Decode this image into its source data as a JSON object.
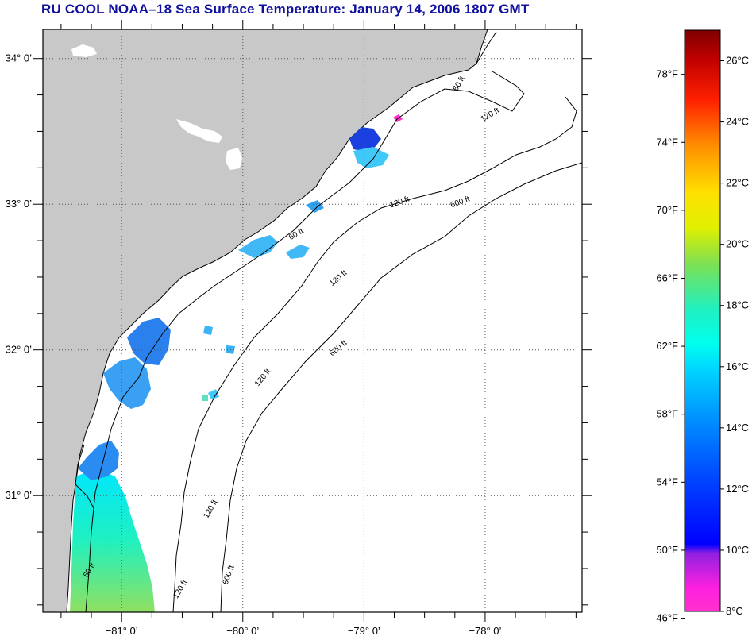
{
  "title": "RU COOL  NOAA–18  Sea Surface Temperature:  January 14, 2006 1807 GMT",
  "map": {
    "lon_range": [
      -81.65,
      -77.2
    ],
    "lat_range": [
      30.2,
      34.2
    ],
    "lat_ticks": [
      {
        "value": 34,
        "label": "34° 0’"
      },
      {
        "value": 33,
        "label": "33° 0’"
      },
      {
        "value": 32,
        "label": "32° 0’"
      },
      {
        "value": 31,
        "label": "31° 0’"
      }
    ],
    "lon_ticks": [
      {
        "value": -81,
        "label": "−81° 0’"
      },
      {
        "value": -80,
        "label": "−80° 0’"
      },
      {
        "value": -79,
        "label": "−79° 0’"
      },
      {
        "value": -78,
        "label": "−78° 0’"
      }
    ],
    "depth_labels": [
      {
        "text": "60 ft",
        "lon": -78.2,
        "lat": 33.82,
        "rotate": -60
      },
      {
        "text": "60 ft",
        "lon": -79.55,
        "lat": 32.78,
        "rotate": -30
      },
      {
        "text": "60 ft",
        "lon": -81.25,
        "lat": 30.48,
        "rotate": -60
      },
      {
        "text": "120 ft",
        "lon": -78.7,
        "lat": 33.0,
        "rotate": -20
      },
      {
        "text": "120 ft",
        "lon": -79.2,
        "lat": 32.48,
        "rotate": -40
      },
      {
        "text": "120 ft",
        "lon": -79.82,
        "lat": 31.8,
        "rotate": -50
      },
      {
        "text": "120 ft",
        "lon": -80.25,
        "lat": 30.9,
        "rotate": -60
      },
      {
        "text": "120 ft",
        "lon": -80.5,
        "lat": 30.35,
        "rotate": -60
      },
      {
        "text": "120 ft",
        "lon": -77.95,
        "lat": 33.6,
        "rotate": -30
      },
      {
        "text": "600 ft",
        "lon": -78.2,
        "lat": 33.0,
        "rotate": -20
      },
      {
        "text": "600 ft",
        "lon": -79.2,
        "lat": 32.0,
        "rotate": -40
      },
      {
        "text": "600 ft",
        "lon": -80.1,
        "lat": 30.45,
        "rotate": -70
      }
    ]
  },
  "colorbar": {
    "fahrenheit": [
      {
        "value": 78,
        "label": "78°F"
      },
      {
        "value": 74,
        "label": "74°F"
      },
      {
        "value": 70,
        "label": "70°F"
      },
      {
        "value": 66,
        "label": "66°F"
      },
      {
        "value": 62,
        "label": "62°F"
      },
      {
        "value": 58,
        "label": "58°F"
      },
      {
        "value": 54,
        "label": "54°F"
      },
      {
        "value": 50,
        "label": "50°F"
      },
      {
        "value": 46,
        "label": "46°F"
      }
    ],
    "celsius": [
      {
        "value": 26,
        "label": "26°C"
      },
      {
        "value": 24,
        "label": "24°C"
      },
      {
        "value": 22,
        "label": "22°C"
      },
      {
        "value": 20,
        "label": "20°C"
      },
      {
        "value": 18,
        "label": "18°C"
      },
      {
        "value": 16,
        "label": "16°C"
      },
      {
        "value": 14,
        "label": "14°C"
      },
      {
        "value": 12,
        "label": "12°C"
      },
      {
        "value": 10,
        "label": "10°C"
      },
      {
        "value": 8,
        "label": "8°C"
      }
    ],
    "range_c": [
      8,
      27
    ],
    "colors": {
      "land": "#c8c8c8",
      "ocean": "#ffffff",
      "coast": "#000000",
      "grid": "#555555",
      "title": "#1010a0",
      "temp_scale": [
        "#ff30cc",
        "#9020e0",
        "#1010ff",
        "#0070ff",
        "#00c8ff",
        "#00f0e0",
        "#60e060",
        "#e0f000",
        "#ffd000",
        "#ff6000",
        "#ff0000",
        "#c00000",
        "#800000"
      ]
    }
  }
}
